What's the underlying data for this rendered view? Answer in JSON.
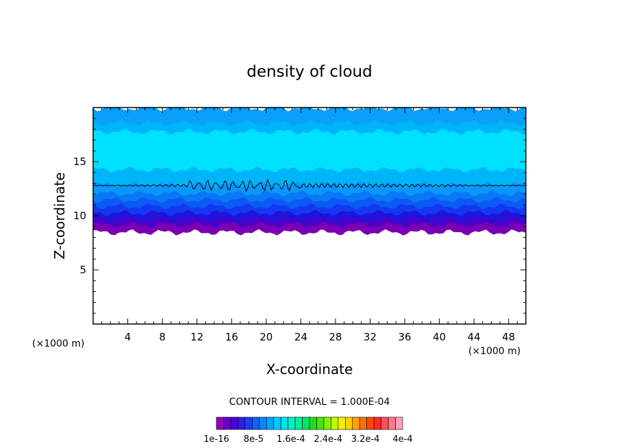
{
  "chart_data": {
    "type": "heatmap",
    "title": "density of cloud",
    "xlabel": "X-coordinate",
    "ylabel": "Z-coordinate",
    "x_unit_left": "(×1000 m)",
    "x_unit_right": "(×1000 m)",
    "xlim": [
      0,
      50
    ],
    "ylim": [
      0,
      20
    ],
    "x_ticks": [
      4,
      8,
      12,
      16,
      20,
      24,
      28,
      32,
      36,
      40,
      44,
      48
    ],
    "y_ticks": [
      5,
      10,
      15
    ],
    "contour_interval_text": "CONTOUR INTERVAL = 1.000E-04",
    "colorbar_labels": [
      "1e-16",
      "8e-5",
      "1.6e-4",
      "2.4e-4",
      "3.2e-4",
      "4e-4"
    ],
    "colorbar_colors": [
      "#9400b8",
      "#6a00c8",
      "#4b00d8",
      "#2e1fe6",
      "#1e3cf0",
      "#1460f5",
      "#0a86fa",
      "#00a8fc",
      "#00c8ff",
      "#00e0f0",
      "#00f0c8",
      "#00f096",
      "#00e664",
      "#20dc20",
      "#46e600",
      "#82f000",
      "#beff00",
      "#f0f000",
      "#ffd200",
      "#ffa000",
      "#ff7000",
      "#ff4600",
      "#ff2828",
      "#ff5060",
      "#ff7890",
      "#ffa0b4"
    ],
    "layers": [
      {
        "z_bottom": 8.5,
        "z_top": 9.2,
        "color": "#7a00b4"
      },
      {
        "z_bottom": 9.2,
        "z_top": 9.7,
        "color": "#4a00c8"
      },
      {
        "z_bottom": 9.7,
        "z_top": 10.3,
        "color": "#1e14dc"
      },
      {
        "z_bottom": 10.3,
        "z_top": 10.9,
        "color": "#1438f0"
      },
      {
        "z_bottom": 10.9,
        "z_top": 11.5,
        "color": "#0a5af5"
      },
      {
        "z_bottom": 11.5,
        "z_top": 12.1,
        "color": "#0a78f5"
      },
      {
        "z_bottom": 12.1,
        "z_top": 12.9,
        "color": "#0a96fa"
      },
      {
        "z_bottom": 12.9,
        "z_top": 14.3,
        "color": "#00b4fa"
      },
      {
        "z_bottom": 14.3,
        "z_top": 17.8,
        "color": "#00e1ff"
      },
      {
        "z_bottom": 17.8,
        "z_top": 18.6,
        "color": "#00b4fa"
      },
      {
        "z_bottom": 18.6,
        "z_top": 19.9,
        "color": "#0aa0fa"
      }
    ],
    "contour_line_z": 12.8
  }
}
